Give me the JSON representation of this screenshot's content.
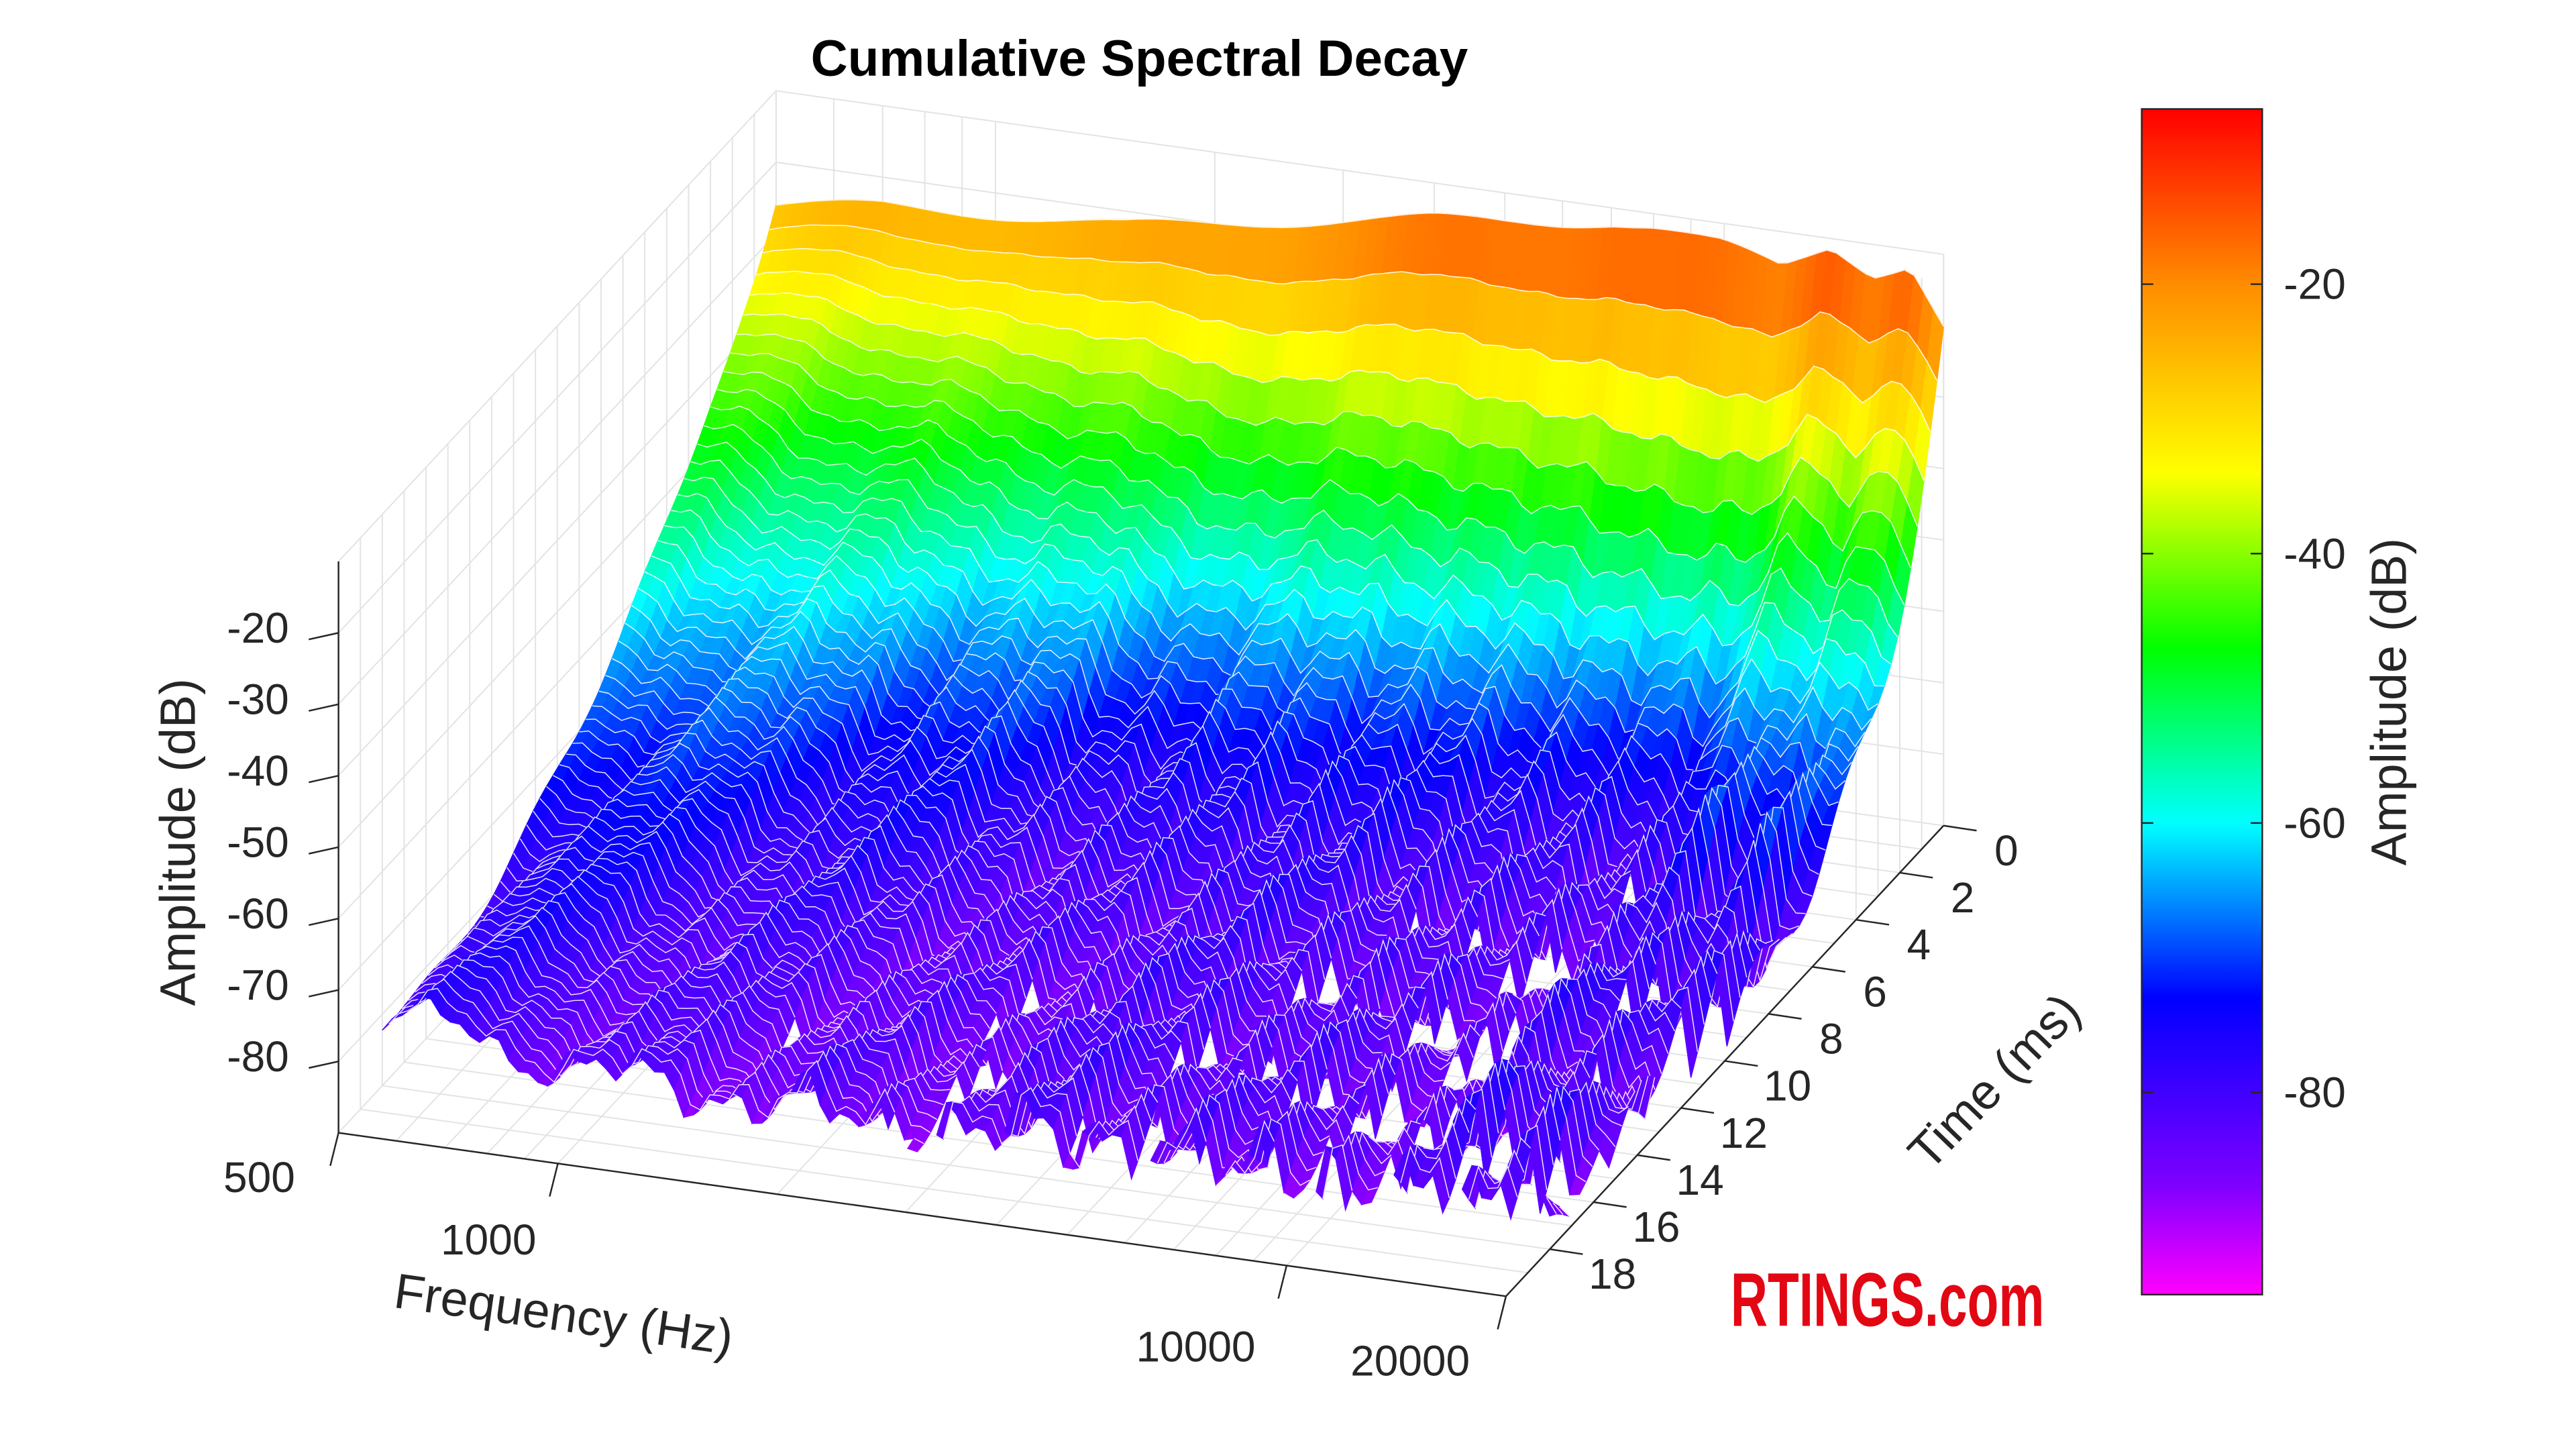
{
  "chart_data": {
    "type": "surface",
    "title": "Cumulative Spectral Decay",
    "xlabel": "Frequency (Hz)",
    "ylabel": "Time (ms)",
    "zlabel": "Amplitude (dB)",
    "xscale": "log",
    "xlim": [
      500,
      20000
    ],
    "ylim": [
      0,
      20
    ],
    "zlim": [
      -90,
      -10
    ],
    "grid": true,
    "x_ticks": [
      "500",
      "1000",
      "10000",
      "20000"
    ],
    "x_tick_values": [
      500,
      1000,
      10000,
      20000
    ],
    "y_ticks": [
      "0",
      "2",
      "4",
      "6",
      "8",
      "10",
      "12",
      "14",
      "16",
      "18"
    ],
    "y_tick_values": [
      0,
      2,
      4,
      6,
      8,
      10,
      12,
      14,
      16,
      18
    ],
    "z_ticks": [
      "-20",
      "-30",
      "-40",
      "-50",
      "-60",
      "-70",
      "-80"
    ],
    "z_tick_values": [
      -20,
      -30,
      -40,
      -50,
      -60,
      -70,
      -80
    ],
    "colorbar": {
      "label": "Amplitude (dB)",
      "range": [
        -95,
        -7
      ],
      "ticks": [
        "-20",
        "-40",
        "-60",
        "-80"
      ],
      "tick_values": [
        -20,
        -40,
        -60,
        -80
      ],
      "colormap": [
        {
          "value": -95,
          "color": "#ff00ff"
        },
        {
          "value": -87,
          "color": "#8000ff"
        },
        {
          "value": -73,
          "color": "#0000ff"
        },
        {
          "value": -60,
          "color": "#00ffff"
        },
        {
          "value": -47,
          "color": "#00ff00"
        },
        {
          "value": -34,
          "color": "#ffff00"
        },
        {
          "value": -20,
          "color": "#ff8c00"
        },
        {
          "value": -7,
          "color": "#ff0000"
        }
      ]
    },
    "surface_model": {
      "freq_hz": [
        500,
        700,
        1000,
        1500,
        2000,
        3000,
        4000,
        5000,
        6000,
        7000,
        8000,
        10000,
        12000,
        14000,
        16000,
        18000,
        20000
      ],
      "amplitude_t0_db": [
        -26,
        -24,
        -23,
        -22,
        -20,
        -17,
        -15,
        -14,
        -13,
        -12,
        -12,
        -13,
        -15,
        -11,
        -14,
        -12,
        -20
      ],
      "decay_depth_db": [
        60,
        61,
        62,
        64,
        65,
        68,
        69,
        70,
        71,
        72,
        73,
        74,
        74,
        70,
        72,
        70,
        68
      ],
      "decay_tau_ms": [
        7,
        6,
        5,
        4,
        3,
        2.8,
        2.6,
        2.5,
        2.3,
        2.2,
        2.1,
        2,
        2.2,
        2.6,
        2.6,
        2.8,
        3
      ],
      "time_step_ms": 0.3,
      "time_max_ms": 18,
      "floor_db": -89
    }
  },
  "watermark": "RTINGS.com"
}
